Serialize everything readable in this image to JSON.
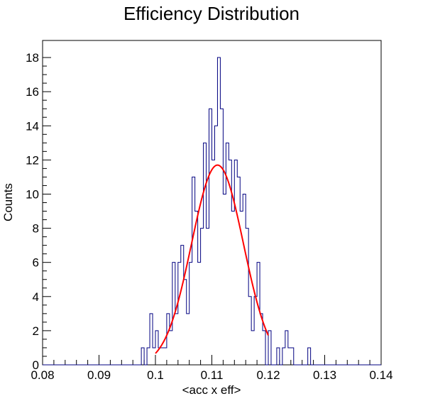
{
  "chart_data": {
    "type": "histogram",
    "title": "Efficiency Distribution",
    "xlabel": "<acc x eff>",
    "ylabel": "Counts",
    "xlim": [
      0.08,
      0.14
    ],
    "ylim": [
      0,
      19
    ],
    "xticks": [
      "0.08",
      "0.09",
      "0.1",
      "0.11",
      "0.12",
      "0.13",
      "0.14"
    ],
    "yticks": [
      "0",
      "2",
      "4",
      "6",
      "8",
      "10",
      "12",
      "14",
      "16",
      "18"
    ],
    "bin_width": 0.0005,
    "grid": false,
    "histogram": {
      "name": "histogram",
      "color": "#000080",
      "bins": [
        [
          0.0975,
          1
        ],
        [
          0.0985,
          1
        ],
        [
          0.099,
          3
        ],
        [
          0.0995,
          1
        ],
        [
          0.1,
          2
        ],
        [
          0.1005,
          1
        ],
        [
          0.101,
          1
        ],
        [
          0.1015,
          1
        ],
        [
          0.102,
          3
        ],
        [
          0.1025,
          2
        ],
        [
          0.103,
          6
        ],
        [
          0.1035,
          3
        ],
        [
          0.104,
          6
        ],
        [
          0.1045,
          7
        ],
        [
          0.105,
          5
        ],
        [
          0.1055,
          3
        ],
        [
          0.106,
          6
        ],
        [
          0.1065,
          11
        ],
        [
          0.107,
          9
        ],
        [
          0.1075,
          6
        ],
        [
          0.108,
          8
        ],
        [
          0.1085,
          13
        ],
        [
          0.109,
          8
        ],
        [
          0.1095,
          15
        ],
        [
          0.11,
          12
        ],
        [
          0.1105,
          14
        ],
        [
          0.111,
          18
        ],
        [
          0.1115,
          15
        ],
        [
          0.112,
          10
        ],
        [
          0.1125,
          13
        ],
        [
          0.113,
          12
        ],
        [
          0.1135,
          9
        ],
        [
          0.114,
          12
        ],
        [
          0.1145,
          11
        ],
        [
          0.115,
          9
        ],
        [
          0.1155,
          10
        ],
        [
          0.116,
          8
        ],
        [
          0.1165,
          4
        ],
        [
          0.117,
          2
        ],
        [
          0.1175,
          4
        ],
        [
          0.118,
          6
        ],
        [
          0.1185,
          3
        ],
        [
          0.119,
          2
        ],
        [
          0.12,
          2
        ],
        [
          0.1215,
          1
        ],
        [
          0.1225,
          1
        ],
        [
          0.123,
          2
        ],
        [
          0.1235,
          1
        ],
        [
          0.124,
          1
        ],
        [
          0.127,
          1
        ]
      ]
    },
    "fit": {
      "name": "gaussian fit",
      "color": "#ff0000",
      "amplitude": 11.7,
      "mean": 0.111,
      "sigma": 0.0046,
      "x_range": [
        0.1,
        0.12
      ]
    }
  }
}
